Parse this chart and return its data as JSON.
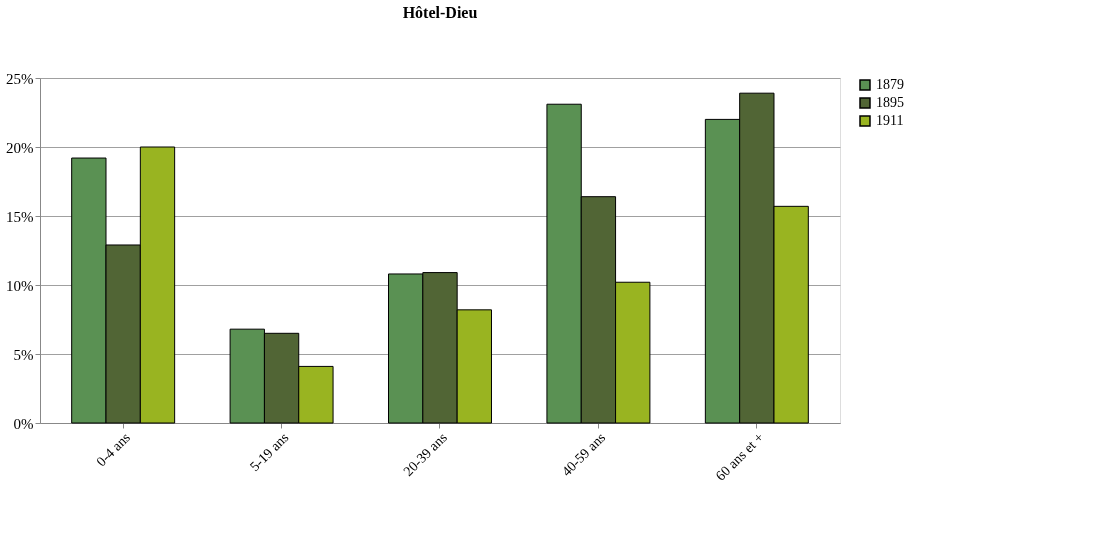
{
  "chart_data": {
    "type": "bar",
    "title": "Hôtel-Dieu",
    "categories": [
      "0-4 ans",
      "5-19 ans",
      "20-39 ans",
      "40-59 ans",
      "60 ans et +"
    ],
    "series": [
      {
        "name": "1879",
        "color": "#5a9153",
        "values": [
          19.2,
          6.8,
          10.8,
          23.1,
          22.0
        ]
      },
      {
        "name": "1895",
        "color": "#516535",
        "values": [
          12.9,
          6.5,
          10.9,
          16.4,
          23.9
        ]
      },
      {
        "name": "1911",
        "color": "#99b421",
        "values": [
          20.0,
          4.1,
          8.2,
          10.2,
          15.7
        ]
      }
    ],
    "ylim": [
      0,
      25
    ],
    "yticks": [
      {
        "value": 0,
        "label": "0%"
      },
      {
        "value": 5,
        "label": "5%"
      },
      {
        "value": 10,
        "label": "10%"
      },
      {
        "value": 15,
        "label": "15%"
      },
      {
        "value": 20,
        "label": "20%"
      },
      {
        "value": 25,
        "label": "25%"
      }
    ],
    "grid": "y",
    "legend": "right"
  }
}
